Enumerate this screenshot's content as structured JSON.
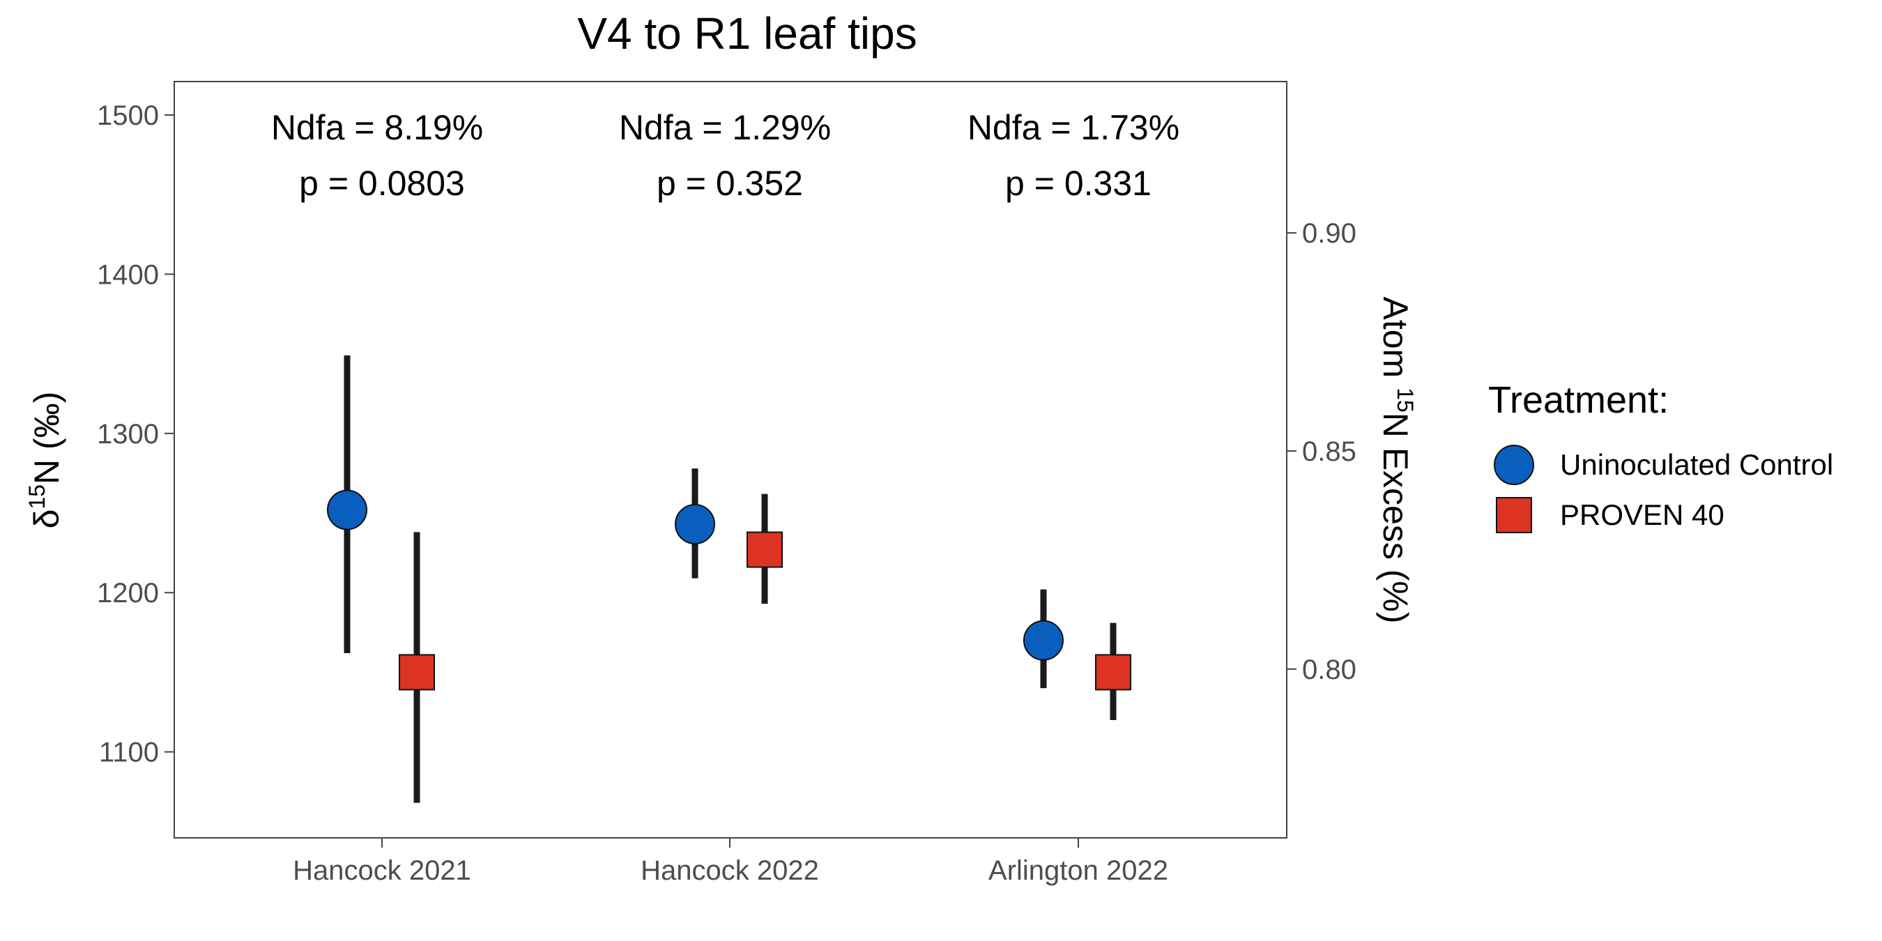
{
  "chart_data": {
    "type": "scatter",
    "title": "V4 to R1 leaf tips",
    "categories": [
      "Hancock 2021",
      "Hancock 2022",
      "Arlington 2022"
    ],
    "y_left": {
      "label_prefix": "δ",
      "label_sup": "15",
      "label_suffix": "N (‰)",
      "ticks": [
        1100,
        1200,
        1300,
        1400,
        1500
      ],
      "range": [
        1046,
        1521
      ]
    },
    "y_right": {
      "label_prefix": "Atom ",
      "label_sup": "15",
      "label_suffix": "N Excess (%)",
      "ticks": [
        "0.80",
        "0.85",
        "0.90"
      ],
      "tick_values": [
        0.8,
        0.85,
        0.9
      ],
      "range": [
        0.7613,
        0.9347
      ]
    },
    "annotations": [
      {
        "category": "Hancock 2021",
        "line1": "Ndfa = 8.19%",
        "line2": "p = 0.0803"
      },
      {
        "category": "Hancock 2022",
        "line1": "Ndfa = 1.29%",
        "line2": "p = 0.352"
      },
      {
        "category": "Arlington 2022",
        "line1": "Ndfa = 1.73%",
        "line2": "p = 0.331"
      }
    ],
    "legend": {
      "title": "Treatment:",
      "position": "right"
    },
    "series": [
      {
        "name": "Uninoculated Control",
        "marker": "circle",
        "color": "#0a5ebd",
        "values": [
          1252,
          1243,
          1170
        ],
        "error_low": [
          1162,
          1209,
          1140
        ],
        "error_high": [
          1349,
          1278,
          1202
        ]
      },
      {
        "name": "PROVEN 40",
        "marker": "square",
        "color": "#dc3323",
        "values": [
          1150,
          1227,
          1150
        ],
        "error_low": [
          1068,
          1193,
          1120
        ],
        "error_high": [
          1238,
          1262,
          1181
        ]
      }
    ],
    "grid": false
  }
}
